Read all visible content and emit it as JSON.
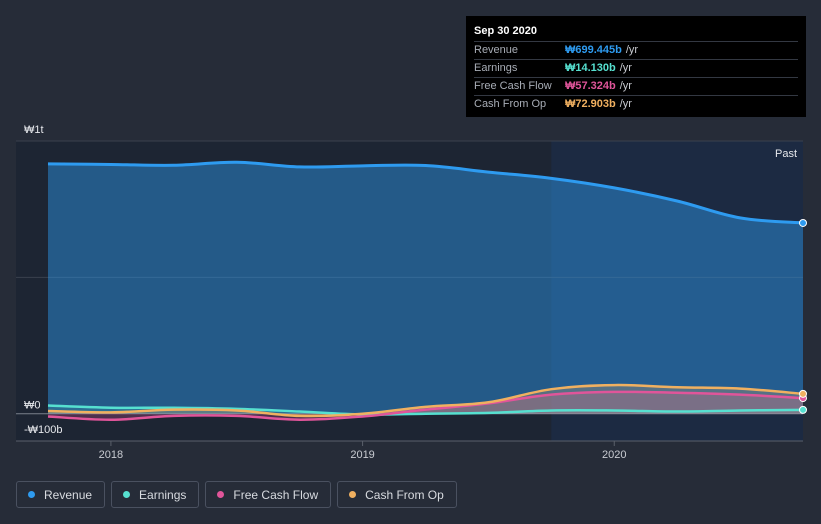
{
  "tooltip": {
    "date": "Sep 30 2020",
    "rows": [
      {
        "name": "Revenue",
        "value": "₩699.445b",
        "unit": "/yr",
        "color": "#2e9bf0"
      },
      {
        "name": "Earnings",
        "value": "₩14.130b",
        "unit": "/yr",
        "color": "#56e0d0"
      },
      {
        "name": "Free Cash Flow",
        "value": "₩57.324b",
        "unit": "/yr",
        "color": "#e0559a"
      },
      {
        "name": "Cash From Op",
        "value": "₩72.903b",
        "unit": "/yr",
        "color": "#f0b060"
      }
    ]
  },
  "legend": [
    {
      "label": "Revenue",
      "color": "#2e9bf0"
    },
    {
      "label": "Earnings",
      "color": "#56e0d0"
    },
    {
      "label": "Free Cash Flow",
      "color": "#e0559a"
    },
    {
      "label": "Cash From Op",
      "color": "#f0b060"
    }
  ],
  "chart_data": {
    "type": "area",
    "unit": "₩ billions",
    "ylim": [
      -100,
      1000
    ],
    "ytick_labels": [
      {
        "value": 1000,
        "label": "₩1t"
      },
      {
        "value": 0,
        "label": "₩0"
      },
      {
        "value": -100,
        "label": "-₩100b"
      }
    ],
    "xlim": [
      2017.75,
      2020.75
    ],
    "xtick_labels": [
      {
        "value": 2018,
        "label": "2018"
      },
      {
        "value": 2019,
        "label": "2019"
      },
      {
        "value": 2020,
        "label": "2020"
      }
    ],
    "past_label": "Past",
    "past_start": 2019.75,
    "highlight_start": 2020.35,
    "x": [
      2017.75,
      2018.0,
      2018.25,
      2018.5,
      2018.75,
      2019.0,
      2019.25,
      2019.5,
      2019.75,
      2020.0,
      2020.25,
      2020.5,
      2020.75
    ],
    "series": [
      {
        "name": "Revenue",
        "color": "#2e9bf0",
        "values": [
          916,
          914,
          911,
          922,
          905,
          909,
          910,
          886,
          863,
          828,
          780,
          718,
          699.445
        ]
      },
      {
        "name": "Earnings",
        "color": "#56e0d0",
        "values": [
          30,
          22,
          22,
          18,
          8,
          -3,
          0,
          3,
          12,
          12,
          8,
          12,
          14.13
        ]
      },
      {
        "name": "Free Cash Flow",
        "color": "#e0559a",
        "values": [
          -10,
          -22,
          -8,
          -8,
          -22,
          -10,
          15,
          38,
          70,
          80,
          77,
          70,
          57.324
        ]
      },
      {
        "name": "Cash From Op",
        "color": "#f0b060",
        "values": [
          10,
          5,
          15,
          12,
          -8,
          0,
          25,
          42,
          90,
          105,
          97,
          92,
          72.903
        ]
      }
    ]
  }
}
